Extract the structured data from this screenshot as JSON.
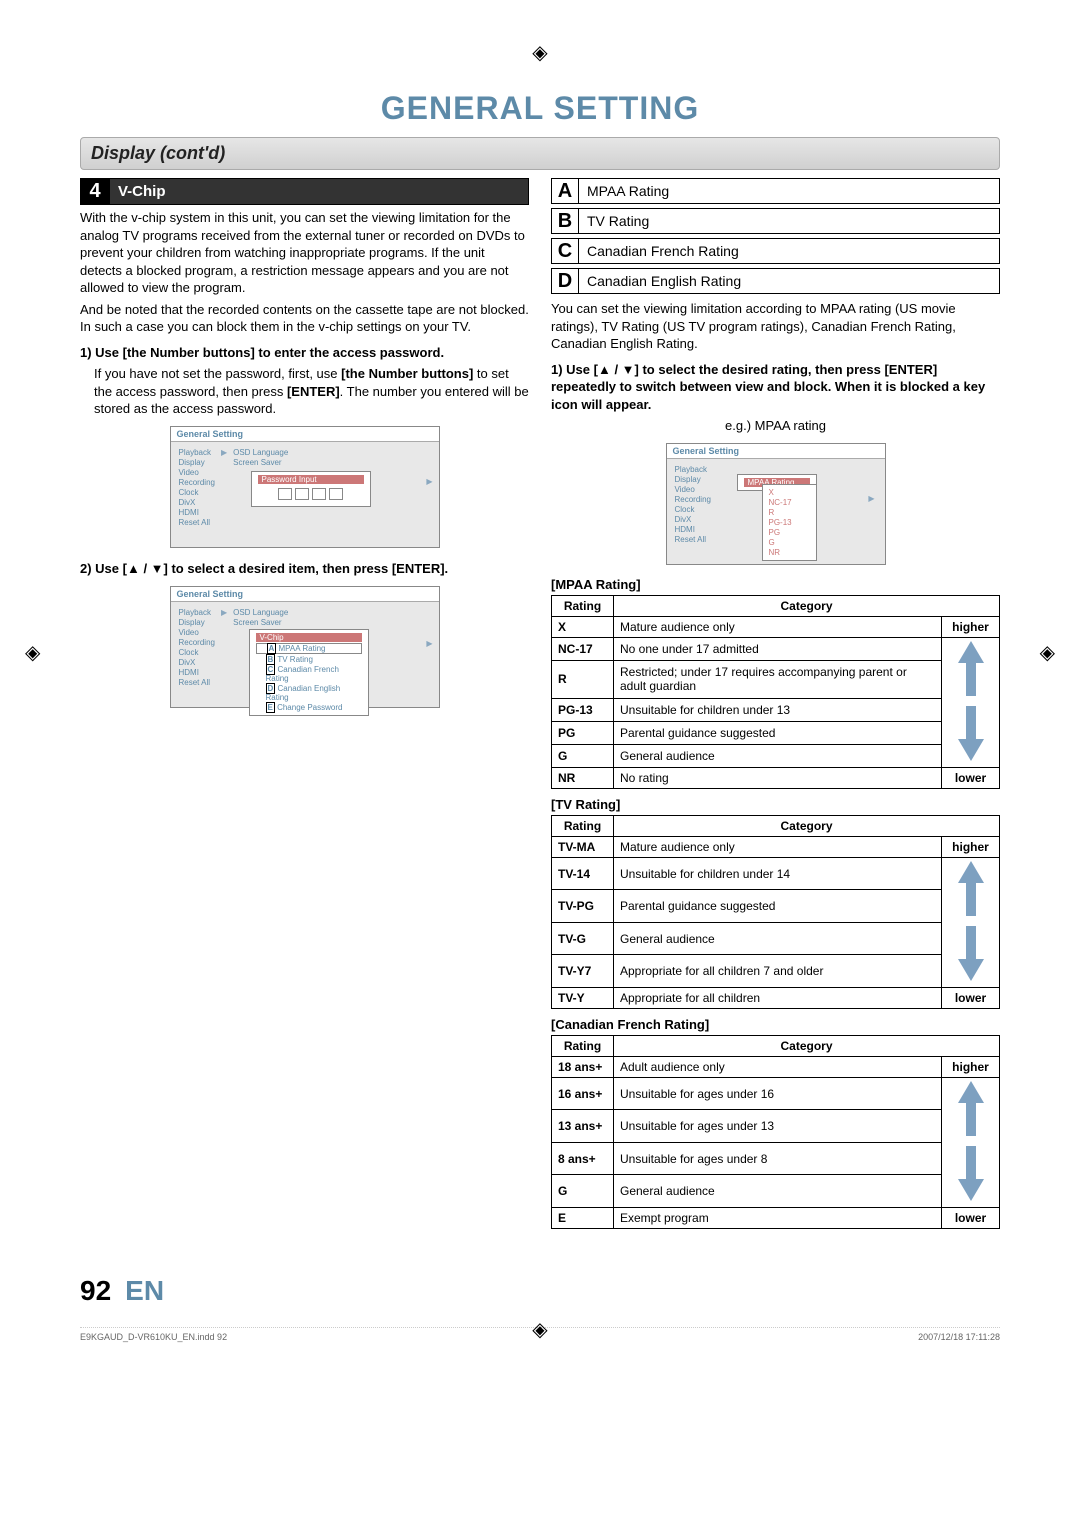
{
  "page_title": "GENERAL SETTING",
  "section": "Display (cont'd)",
  "step4": {
    "num": "4",
    "title": "V-Chip",
    "intro1": "With the v-chip system in this unit, you can set the viewing limitation for the analog TV programs received from the external tuner or recorded on DVDs to prevent your children from watching inappropriate programs. If the unit detects a blocked program, a restriction message appears and you are not allowed to view the program.",
    "intro2": "And be noted that the recorded contents on the cassette tape are not blocked. In such a case you can block them in the v-chip settings on your TV.",
    "step1_head": "1) Use [the Number buttons] to enter the access password.",
    "step1_body_a": "If you have not set the password, first, use ",
    "step1_body_b": "[the Number buttons]",
    "step1_body_c": " to set the access password, then press ",
    "step1_body_d": "[ENTER]",
    "step1_body_e": ". The number you entered will be stored as the access password.",
    "step2_head": "2) Use [▲ / ▼] to select a desired item, then press [ENTER]."
  },
  "letter_rows": [
    {
      "l": "A",
      "t": "MPAA Rating"
    },
    {
      "l": "B",
      "t": "TV Rating"
    },
    {
      "l": "C",
      "t": "Canadian French Rating"
    },
    {
      "l": "D",
      "t": "Canadian English Rating"
    }
  ],
  "right_intro": "You can set the viewing limitation according to MPAA rating (US movie ratings), TV Rating (US TV program ratings), Canadian French Rating, Canadian English Rating.",
  "right_step1": "1) Use [▲ / ▼] to select the desired rating, then press [ENTER] repeatedly to switch between view and block. When it is blocked a key icon will appear.",
  "right_eg": "e.g.) MPAA rating",
  "osd": {
    "title": "General Setting",
    "sidebar": [
      "Playback",
      "Display",
      "Video",
      "Recording",
      "Clock",
      "DivX",
      "HDMI",
      "Reset All"
    ],
    "right_items": [
      "OSD Language",
      "Screen Saver"
    ],
    "pwd_label": "Password Input",
    "vchip_label": "V-Chip",
    "vchip_menu": [
      "MPAA Rating",
      "TV Rating",
      "Canadian French Rating",
      "Canadian English Rating",
      "Change Password"
    ],
    "mpaa_label": "MPAA Rating",
    "mpaa_list": [
      "X",
      "NC-17",
      "R",
      "PG-13",
      "PG",
      "G",
      "NR"
    ]
  },
  "tables": {
    "mpaa": {
      "title": "[MPAA Rating]",
      "head": [
        "Rating",
        "Category"
      ],
      "rows": [
        [
          "X",
          "Mature audience only"
        ],
        [
          "NC-17",
          "No one under 17 admitted"
        ],
        [
          "R",
          "Restricted; under 17 requires accompanying parent or adult guardian"
        ],
        [
          "PG-13",
          "Unsuitable for children under 13"
        ],
        [
          "PG",
          "Parental guidance suggested"
        ],
        [
          "G",
          "General audience"
        ],
        [
          "NR",
          "No rating"
        ]
      ],
      "top": "higher",
      "bottom": "lower"
    },
    "tv": {
      "title": "[TV Rating]",
      "head": [
        "Rating",
        "Category"
      ],
      "rows": [
        [
          "TV-MA",
          "Mature audience only"
        ],
        [
          "TV-14",
          "Unsuitable for children under 14"
        ],
        [
          "TV-PG",
          "Parental guidance suggested"
        ],
        [
          "TV-G",
          "General audience"
        ],
        [
          "TV-Y7",
          "Appropriate for all children 7 and older"
        ],
        [
          "TV-Y",
          "Appropriate for all children"
        ]
      ],
      "top": "higher",
      "bottom": "lower"
    },
    "cf": {
      "title": "[Canadian French Rating]",
      "head": [
        "Rating",
        "Category"
      ],
      "rows": [
        [
          "18 ans+",
          "Adult audience only"
        ],
        [
          "16 ans+",
          "Unsuitable for ages under 16"
        ],
        [
          "13 ans+",
          "Unsuitable for ages under 13"
        ],
        [
          "8 ans+",
          "Unsuitable for ages under 8"
        ],
        [
          "G",
          "General audience"
        ],
        [
          "E",
          "Exempt program"
        ]
      ],
      "top": "higher",
      "bottom": "lower"
    }
  },
  "footer": {
    "page": "92",
    "lang": "EN",
    "file": "E9KGAUD_D-VR610KU_EN.indd   92",
    "ts": "2007/12/18   17:11:28"
  },
  "colors": {
    "accent": "#5d8aa8",
    "arrow_up": "#7da0c0",
    "arrow_down": "#7da0c0"
  }
}
